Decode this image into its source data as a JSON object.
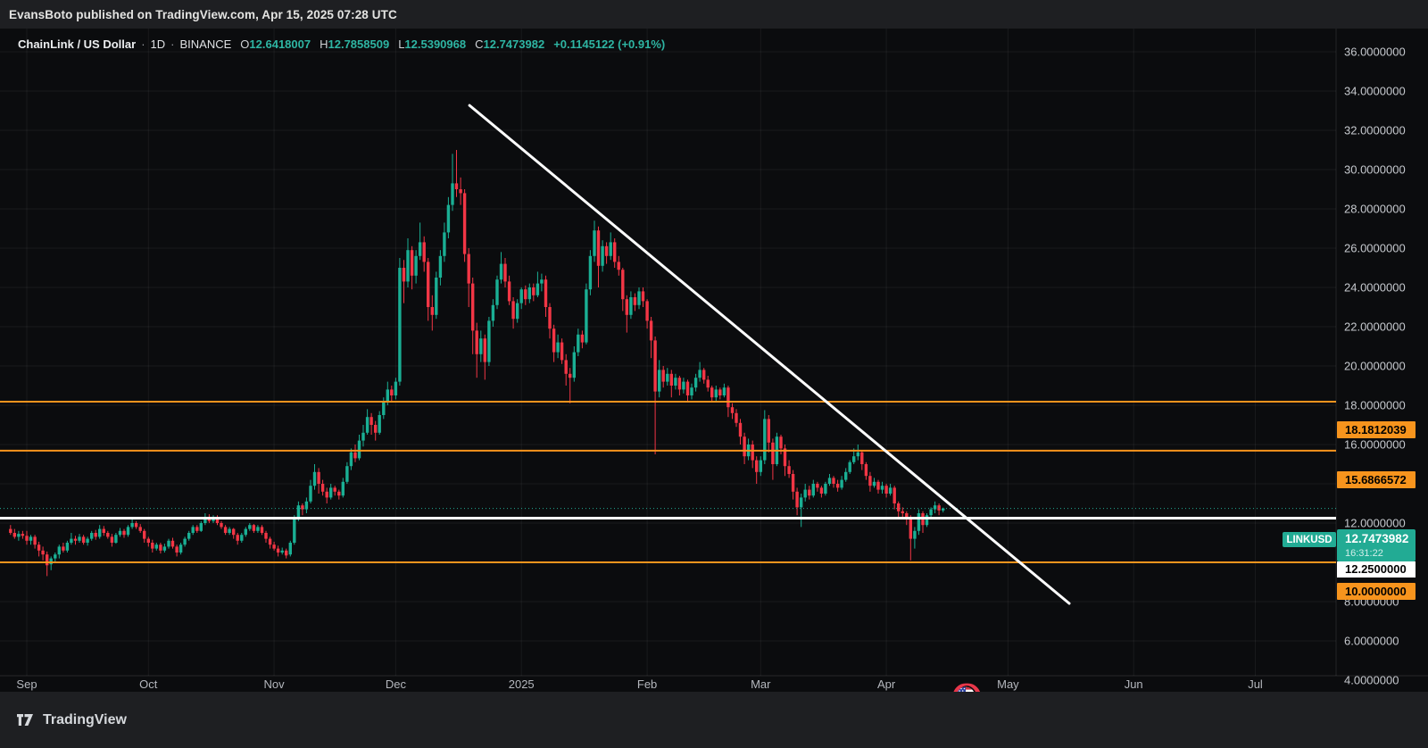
{
  "publish_bar": {
    "text": "EvansBoto published on TradingView.com, Apr 15, 2025 07:28 UTC"
  },
  "legend": {
    "symbol": "ChainLink / US Dollar",
    "separator": "·",
    "interval": "1D",
    "exchange": "BINANCE",
    "ohlc": {
      "o_label": "O",
      "o_value": "12.6418007",
      "h_label": "H",
      "h_value": "12.7858509",
      "l_label": "L",
      "l_value": "12.5390968",
      "c_label": "C",
      "c_value": "12.7473982",
      "change": "+0.1145122 (+0.91%)"
    }
  },
  "price_axis": {
    "labels": {
      "symbol_tag": "LINKUSD",
      "last_price": "12.7473982",
      "countdown": "16:31:22",
      "alert_level": "12.2500000",
      "levels": [
        "18.1812039",
        "15.6866572",
        "10.0000000"
      ]
    }
  },
  "footer": {
    "brand": "TradingView"
  },
  "colors": {
    "background": "#0b0c0e",
    "panel": "#1e1f22",
    "grid": "rgba(255,255,255,0.06)",
    "bull": "#1aaf94",
    "bear": "#f23645",
    "accent_teal": "#22ab94",
    "accent_orange": "#f7941d",
    "line_white": "#ffffff",
    "axis_text": "#c6c9ce"
  },
  "chart_data": {
    "type": "candlestick",
    "title": "ChainLink / US Dollar · 1D · BINANCE",
    "x_start_date": "2024-08-28",
    "grid": true,
    "legend_position": "top-left",
    "y_axis": {
      "min": 4,
      "max": 36,
      "tick_step": 2,
      "tick_values": [
        36,
        34,
        32,
        30,
        28,
        26,
        24,
        22,
        20,
        18,
        16,
        14,
        12,
        10,
        8,
        6,
        4
      ],
      "tick_labels": [
        "36.0000000",
        "34.0000000",
        "32.0000000",
        "30.0000000",
        "28.0000000",
        "26.0000000",
        "24.0000000",
        "22.0000000",
        "20.0000000",
        "18.0000000",
        "16.0000000",
        "14.0000000",
        "12.0000000",
        "10.0000000",
        "8.0000000",
        "6.0000000",
        "4.0000000"
      ]
    },
    "x_axis": {
      "tick_labels": [
        "Sep",
        "Oct",
        "Nov",
        "Dec",
        "2025",
        "Feb",
        "Mar",
        "Apr",
        "May",
        "Jun",
        "Jul"
      ],
      "tick_day_index": [
        4,
        34,
        65,
        95,
        126,
        157,
        185,
        216,
        246,
        277,
        307
      ]
    },
    "horizontal_lines": [
      {
        "price": 18.1812039,
        "color": "orange",
        "style": "solid",
        "role": "resistance"
      },
      {
        "price": 15.6866572,
        "color": "orange",
        "style": "solid",
        "role": "resistance"
      },
      {
        "price": 10.0,
        "color": "orange",
        "style": "solid",
        "role": "support"
      },
      {
        "price": 12.25,
        "color": "white",
        "style": "solid",
        "role": "alert-level"
      },
      {
        "price": 12.7473982,
        "color": "teal",
        "style": "dotted",
        "role": "last-price"
      }
    ],
    "trendline": {
      "from_day_index": 113.2,
      "from_price": 33.27,
      "to_day_index": 261.1,
      "to_price": 7.91,
      "color": "#ffffff"
    },
    "candles_ohlc": [
      [
        11.7,
        11.9,
        11.4,
        11.5
      ],
      [
        11.5,
        11.7,
        11.2,
        11.3
      ],
      [
        11.3,
        11.6,
        11.1,
        11.45
      ],
      [
        11.45,
        11.6,
        11.2,
        11.35
      ],
      [
        11.35,
        11.6,
        10.9,
        11.1
      ],
      [
        11.1,
        11.4,
        10.9,
        11.3
      ],
      [
        11.3,
        11.4,
        10.7,
        10.9
      ],
      [
        10.9,
        11.05,
        10.3,
        10.6
      ],
      [
        10.6,
        10.8,
        10.1,
        10.4
      ],
      [
        10.4,
        10.55,
        9.3,
        9.85
      ],
      [
        9.9,
        10.3,
        9.6,
        10.2
      ],
      [
        10.2,
        10.5,
        10.0,
        10.4
      ],
      [
        10.4,
        10.9,
        10.2,
        10.8
      ],
      [
        10.8,
        11.0,
        10.5,
        10.6
      ],
      [
        10.6,
        11.1,
        10.5,
        11.0
      ],
      [
        11.0,
        11.5,
        10.9,
        11.2
      ],
      [
        11.2,
        11.35,
        10.9,
        11.1
      ],
      [
        11.1,
        11.45,
        11.0,
        11.3
      ],
      [
        11.3,
        11.4,
        10.9,
        11.0
      ],
      [
        11.0,
        11.3,
        10.85,
        11.2
      ],
      [
        11.2,
        11.6,
        11.1,
        11.5
      ],
      [
        11.5,
        11.65,
        11.15,
        11.3
      ],
      [
        11.3,
        11.9,
        11.2,
        11.7
      ],
      [
        11.7,
        11.85,
        11.35,
        11.5
      ],
      [
        11.5,
        11.6,
        11.2,
        11.3
      ],
      [
        11.3,
        11.45,
        10.8,
        11.0
      ],
      [
        11.0,
        11.5,
        10.95,
        11.4
      ],
      [
        11.4,
        11.75,
        11.3,
        11.6
      ],
      [
        11.6,
        11.7,
        11.25,
        11.4
      ],
      [
        11.4,
        11.9,
        11.3,
        11.8
      ],
      [
        11.8,
        12.2,
        11.7,
        12.0
      ],
      [
        12.0,
        12.1,
        11.7,
        11.8
      ],
      [
        11.8,
        11.95,
        11.5,
        11.6
      ],
      [
        11.6,
        11.7,
        11.0,
        11.2
      ],
      [
        11.2,
        11.3,
        10.8,
        11.0
      ],
      [
        11.0,
        11.15,
        10.5,
        10.7
      ],
      [
        10.7,
        11.0,
        10.6,
        10.9
      ],
      [
        10.9,
        11.0,
        10.45,
        10.6
      ],
      [
        10.6,
        10.95,
        10.5,
        10.8
      ],
      [
        10.8,
        11.2,
        10.7,
        11.1
      ],
      [
        11.1,
        11.25,
        10.7,
        10.8
      ],
      [
        10.8,
        10.9,
        10.3,
        10.5
      ],
      [
        10.5,
        11.0,
        10.4,
        10.9
      ],
      [
        10.9,
        11.3,
        10.8,
        11.2
      ],
      [
        11.2,
        11.6,
        11.1,
        11.5
      ],
      [
        11.5,
        11.9,
        11.4,
        11.8
      ],
      [
        11.8,
        11.9,
        11.5,
        11.6
      ],
      [
        11.6,
        12.1,
        11.55,
        12.0
      ],
      [
        12.0,
        12.5,
        11.9,
        12.3
      ],
      [
        12.3,
        12.45,
        12.0,
        12.1
      ],
      [
        12.1,
        12.4,
        12.0,
        12.3
      ],
      [
        12.3,
        12.4,
        11.9,
        12.0
      ],
      [
        12.0,
        12.1,
        11.7,
        11.8
      ],
      [
        11.8,
        11.9,
        11.4,
        11.5
      ],
      [
        11.5,
        11.8,
        11.4,
        11.7
      ],
      [
        11.7,
        11.75,
        11.2,
        11.4
      ],
      [
        11.4,
        11.5,
        10.9,
        11.1
      ],
      [
        11.1,
        11.5,
        11.0,
        11.4
      ],
      [
        11.4,
        11.8,
        11.3,
        11.7
      ],
      [
        11.7,
        12.0,
        11.6,
        11.9
      ],
      [
        11.9,
        11.95,
        11.5,
        11.6
      ],
      [
        11.6,
        11.9,
        11.5,
        11.8
      ],
      [
        11.8,
        11.9,
        11.4,
        11.5
      ],
      [
        11.5,
        11.6,
        11.0,
        11.2
      ],
      [
        11.2,
        11.3,
        10.7,
        10.9
      ],
      [
        10.9,
        11.05,
        10.6,
        10.7
      ],
      [
        10.7,
        10.85,
        10.3,
        10.5
      ],
      [
        10.5,
        10.75,
        10.4,
        10.6
      ],
      [
        10.6,
        10.7,
        10.2,
        10.35
      ],
      [
        10.4,
        11.1,
        10.3,
        11.0
      ],
      [
        11.0,
        12.4,
        10.9,
        12.2
      ],
      [
        12.2,
        13.1,
        12.1,
        12.9
      ],
      [
        12.9,
        13.0,
        12.4,
        12.7
      ],
      [
        12.7,
        13.3,
        12.5,
        13.1
      ],
      [
        13.1,
        14.2,
        13.0,
        13.9
      ],
      [
        13.9,
        15.0,
        13.7,
        14.6
      ],
      [
        14.6,
        14.8,
        13.5,
        14.0
      ],
      [
        14.0,
        14.2,
        13.4,
        13.6
      ],
      [
        13.6,
        13.8,
        13.0,
        13.3
      ],
      [
        13.3,
        14.0,
        13.2,
        13.8
      ],
      [
        13.8,
        13.9,
        13.4,
        13.6
      ],
      [
        13.6,
        13.7,
        13.2,
        13.4
      ],
      [
        13.4,
        14.3,
        13.3,
        14.1
      ],
      [
        14.1,
        15.1,
        14.0,
        14.9
      ],
      [
        14.9,
        15.8,
        14.7,
        15.6
      ],
      [
        15.6,
        16.0,
        15.1,
        15.3
      ],
      [
        15.3,
        16.5,
        15.2,
        16.2
      ],
      [
        16.2,
        17.0,
        15.9,
        16.6
      ],
      [
        16.6,
        17.8,
        16.5,
        17.4
      ],
      [
        17.4,
        17.6,
        16.5,
        17.0
      ],
      [
        17.0,
        17.2,
        16.2,
        16.6
      ],
      [
        16.6,
        17.7,
        16.5,
        17.5
      ],
      [
        17.5,
        18.4,
        17.3,
        18.2
      ],
      [
        18.2,
        19.2,
        18.0,
        18.8
      ],
      [
        18.8,
        19.0,
        18.2,
        18.5
      ],
      [
        18.5,
        19.4,
        18.3,
        19.2
      ],
      [
        19.2,
        25.5,
        19.0,
        25.0
      ],
      [
        25.0,
        25.4,
        23.2,
        24.3
      ],
      [
        24.3,
        26.5,
        24.0,
        25.9
      ],
      [
        25.9,
        26.1,
        23.9,
        24.6
      ],
      [
        24.6,
        25.9,
        24.2,
        25.6
      ],
      [
        25.6,
        27.3,
        25.4,
        26.3
      ],
      [
        26.3,
        26.6,
        24.8,
        25.3
      ],
      [
        25.3,
        25.5,
        22.3,
        23.0
      ],
      [
        23.0,
        23.6,
        21.8,
        22.6
      ],
      [
        22.6,
        24.8,
        22.4,
        24.5
      ],
      [
        24.5,
        25.9,
        24.1,
        25.6
      ],
      [
        25.6,
        27.3,
        25.3,
        26.8
      ],
      [
        26.8,
        28.6,
        26.5,
        28.2
      ],
      [
        28.2,
        30.8,
        27.9,
        29.3
      ],
      [
        29.3,
        31.0,
        28.6,
        29.0
      ],
      [
        29.0,
        29.6,
        28.2,
        28.8
      ],
      [
        28.8,
        29.0,
        25.3,
        25.7
      ],
      [
        25.7,
        26.0,
        23.0,
        24.2
      ],
      [
        24.2,
        24.5,
        20.6,
        21.8
      ],
      [
        21.8,
        22.2,
        19.4,
        20.6
      ],
      [
        20.6,
        21.8,
        20.2,
        21.4
      ],
      [
        21.4,
        21.6,
        19.3,
        20.2
      ],
      [
        20.2,
        22.5,
        20.0,
        22.3
      ],
      [
        22.3,
        23.4,
        22.0,
        23.1
      ],
      [
        23.1,
        24.6,
        22.9,
        24.4
      ],
      [
        24.4,
        25.8,
        24.2,
        25.2
      ],
      [
        25.2,
        25.5,
        24.0,
        24.3
      ],
      [
        24.3,
        24.6,
        23.1,
        23.3
      ],
      [
        23.3,
        23.5,
        21.9,
        22.4
      ],
      [
        22.4,
        23.4,
        22.2,
        23.2
      ],
      [
        23.2,
        24.0,
        22.9,
        23.9
      ],
      [
        23.9,
        24.1,
        23.1,
        23.4
      ],
      [
        23.4,
        24.2,
        23.2,
        24.0
      ],
      [
        24.0,
        24.2,
        23.3,
        23.6
      ],
      [
        23.6,
        24.8,
        23.5,
        24.2
      ],
      [
        24.2,
        24.7,
        23.8,
        24.4
      ],
      [
        24.4,
        24.6,
        22.5,
        23.0
      ],
      [
        23.0,
        23.2,
        21.4,
        21.9
      ],
      [
        21.9,
        22.1,
        20.2,
        20.7
      ],
      [
        20.7,
        21.6,
        20.4,
        21.2
      ],
      [
        21.2,
        21.4,
        20.1,
        20.3
      ],
      [
        20.3,
        20.6,
        19.0,
        19.6
      ],
      [
        19.6,
        19.9,
        18.1,
        19.4
      ],
      [
        19.4,
        21.0,
        19.2,
        20.7
      ],
      [
        20.7,
        21.9,
        20.5,
        21.6
      ],
      [
        21.6,
        21.8,
        20.9,
        21.2
      ],
      [
        21.2,
        24.2,
        21.1,
        23.9
      ],
      [
        23.9,
        25.9,
        23.6,
        25.6
      ],
      [
        25.6,
        27.4,
        25.3,
        26.9
      ],
      [
        26.9,
        27.1,
        24.0,
        25.1
      ],
      [
        25.1,
        26.4,
        24.8,
        26.1
      ],
      [
        26.1,
        26.3,
        25.2,
        25.6
      ],
      [
        25.6,
        26.8,
        25.4,
        26.3
      ],
      [
        26.3,
        26.5,
        25.0,
        25.3
      ],
      [
        25.3,
        25.6,
        24.6,
        24.9
      ],
      [
        24.9,
        25.0,
        22.8,
        23.4
      ],
      [
        23.4,
        23.6,
        21.7,
        22.6
      ],
      [
        22.6,
        23.8,
        22.4,
        23.5
      ],
      [
        23.5,
        23.7,
        22.8,
        23.1
      ],
      [
        23.1,
        24.0,
        22.9,
        23.8
      ],
      [
        23.8,
        24.0,
        23.0,
        23.3
      ],
      [
        23.3,
        23.4,
        21.9,
        22.3
      ],
      [
        22.3,
        22.5,
        20.4,
        21.3
      ],
      [
        21.3,
        21.5,
        15.5,
        18.7
      ],
      [
        18.7,
        20.3,
        18.4,
        19.8
      ],
      [
        19.8,
        20.0,
        18.9,
        19.2
      ],
      [
        19.2,
        19.9,
        19.0,
        19.6
      ],
      [
        19.6,
        19.8,
        18.4,
        19.0
      ],
      [
        19.0,
        19.6,
        18.8,
        19.4
      ],
      [
        19.4,
        19.5,
        18.5,
        18.8
      ],
      [
        18.8,
        19.4,
        18.6,
        19.2
      ],
      [
        19.2,
        19.3,
        18.2,
        18.5
      ],
      [
        18.5,
        19.1,
        18.3,
        18.9
      ],
      [
        18.9,
        19.6,
        18.7,
        19.4
      ],
      [
        19.4,
        20.2,
        19.2,
        19.8
      ],
      [
        19.8,
        19.9,
        19.1,
        19.3
      ],
      [
        19.3,
        19.5,
        18.7,
        18.9
      ],
      [
        18.9,
        19.0,
        18.2,
        18.4
      ],
      [
        18.4,
        19.0,
        18.2,
        18.8
      ],
      [
        18.8,
        18.9,
        18.3,
        18.5
      ],
      [
        18.5,
        19.1,
        18.4,
        18.9
      ],
      [
        18.9,
        19.0,
        17.4,
        17.9
      ],
      [
        17.9,
        18.1,
        17.3,
        17.6
      ],
      [
        17.6,
        17.8,
        16.9,
        17.1
      ],
      [
        17.1,
        17.3,
        16.0,
        16.4
      ],
      [
        16.4,
        16.6,
        15.0,
        15.4
      ],
      [
        15.4,
        16.3,
        15.2,
        16.0
      ],
      [
        16.0,
        16.2,
        14.8,
        15.2
      ],
      [
        15.2,
        15.4,
        14.0,
        14.6
      ],
      [
        14.6,
        15.4,
        14.4,
        15.2
      ],
      [
        15.2,
        17.75,
        15.0,
        17.3
      ],
      [
        17.3,
        17.5,
        15.6,
        16.1
      ],
      [
        16.1,
        16.3,
        14.2,
        15.0
      ],
      [
        15.0,
        16.6,
        14.9,
        16.4
      ],
      [
        16.4,
        16.5,
        15.5,
        15.8
      ],
      [
        15.8,
        16.0,
        14.4,
        14.9
      ],
      [
        14.9,
        15.2,
        14.3,
        14.5
      ],
      [
        14.5,
        14.7,
        13.2,
        13.6
      ],
      [
        13.6,
        13.8,
        12.4,
        12.8
      ],
      [
        12.8,
        13.5,
        11.8,
        13.3
      ],
      [
        13.3,
        14.0,
        13.1,
        13.7
      ],
      [
        13.7,
        13.9,
        13.2,
        13.4
      ],
      [
        13.4,
        14.2,
        13.3,
        14.0
      ],
      [
        14.0,
        14.1,
        13.6,
        13.8
      ],
      [
        13.8,
        13.9,
        13.3,
        13.5
      ],
      [
        13.5,
        14.1,
        13.4,
        14.0
      ],
      [
        14.0,
        14.5,
        13.9,
        14.3
      ],
      [
        14.3,
        14.4,
        13.8,
        14.0
      ],
      [
        14.0,
        14.2,
        13.6,
        13.8
      ],
      [
        13.8,
        14.4,
        13.7,
        14.2
      ],
      [
        14.2,
        14.8,
        14.1,
        14.6
      ],
      [
        14.6,
        15.2,
        14.5,
        15.1
      ],
      [
        15.1,
        15.8,
        15.0,
        15.4
      ],
      [
        15.4,
        16.0,
        15.2,
        15.6
      ],
      [
        15.6,
        15.7,
        14.7,
        15.0
      ],
      [
        15.0,
        15.1,
        14.2,
        14.4
      ],
      [
        14.4,
        14.6,
        13.6,
        13.9
      ],
      [
        13.9,
        14.3,
        13.8,
        14.1
      ],
      [
        14.1,
        14.2,
        13.5,
        13.7
      ],
      [
        13.7,
        14.1,
        13.5,
        13.9
      ],
      [
        13.9,
        14.0,
        13.3,
        13.5
      ],
      [
        13.5,
        14.0,
        13.4,
        13.8
      ],
      [
        13.8,
        13.9,
        12.7,
        13.0
      ],
      [
        13.0,
        13.1,
        12.2,
        12.6
      ],
      [
        12.6,
        12.8,
        12.3,
        12.5
      ],
      [
        12.5,
        12.6,
        11.9,
        12.3
      ],
      [
        12.3,
        12.4,
        10.1,
        11.2
      ],
      [
        11.2,
        11.8,
        10.7,
        11.6
      ],
      [
        11.6,
        12.7,
        11.4,
        12.5
      ],
      [
        12.5,
        12.6,
        11.5,
        11.9
      ],
      [
        11.9,
        12.5,
        11.8,
        12.4
      ],
      [
        12.4,
        12.8,
        12.3,
        12.7
      ],
      [
        12.7,
        13.1,
        12.5,
        12.9
      ],
      [
        12.9,
        13.0,
        12.4,
        12.64
      ],
      [
        12.6418007,
        12.7858509,
        12.5390968,
        12.7473982
      ]
    ]
  }
}
